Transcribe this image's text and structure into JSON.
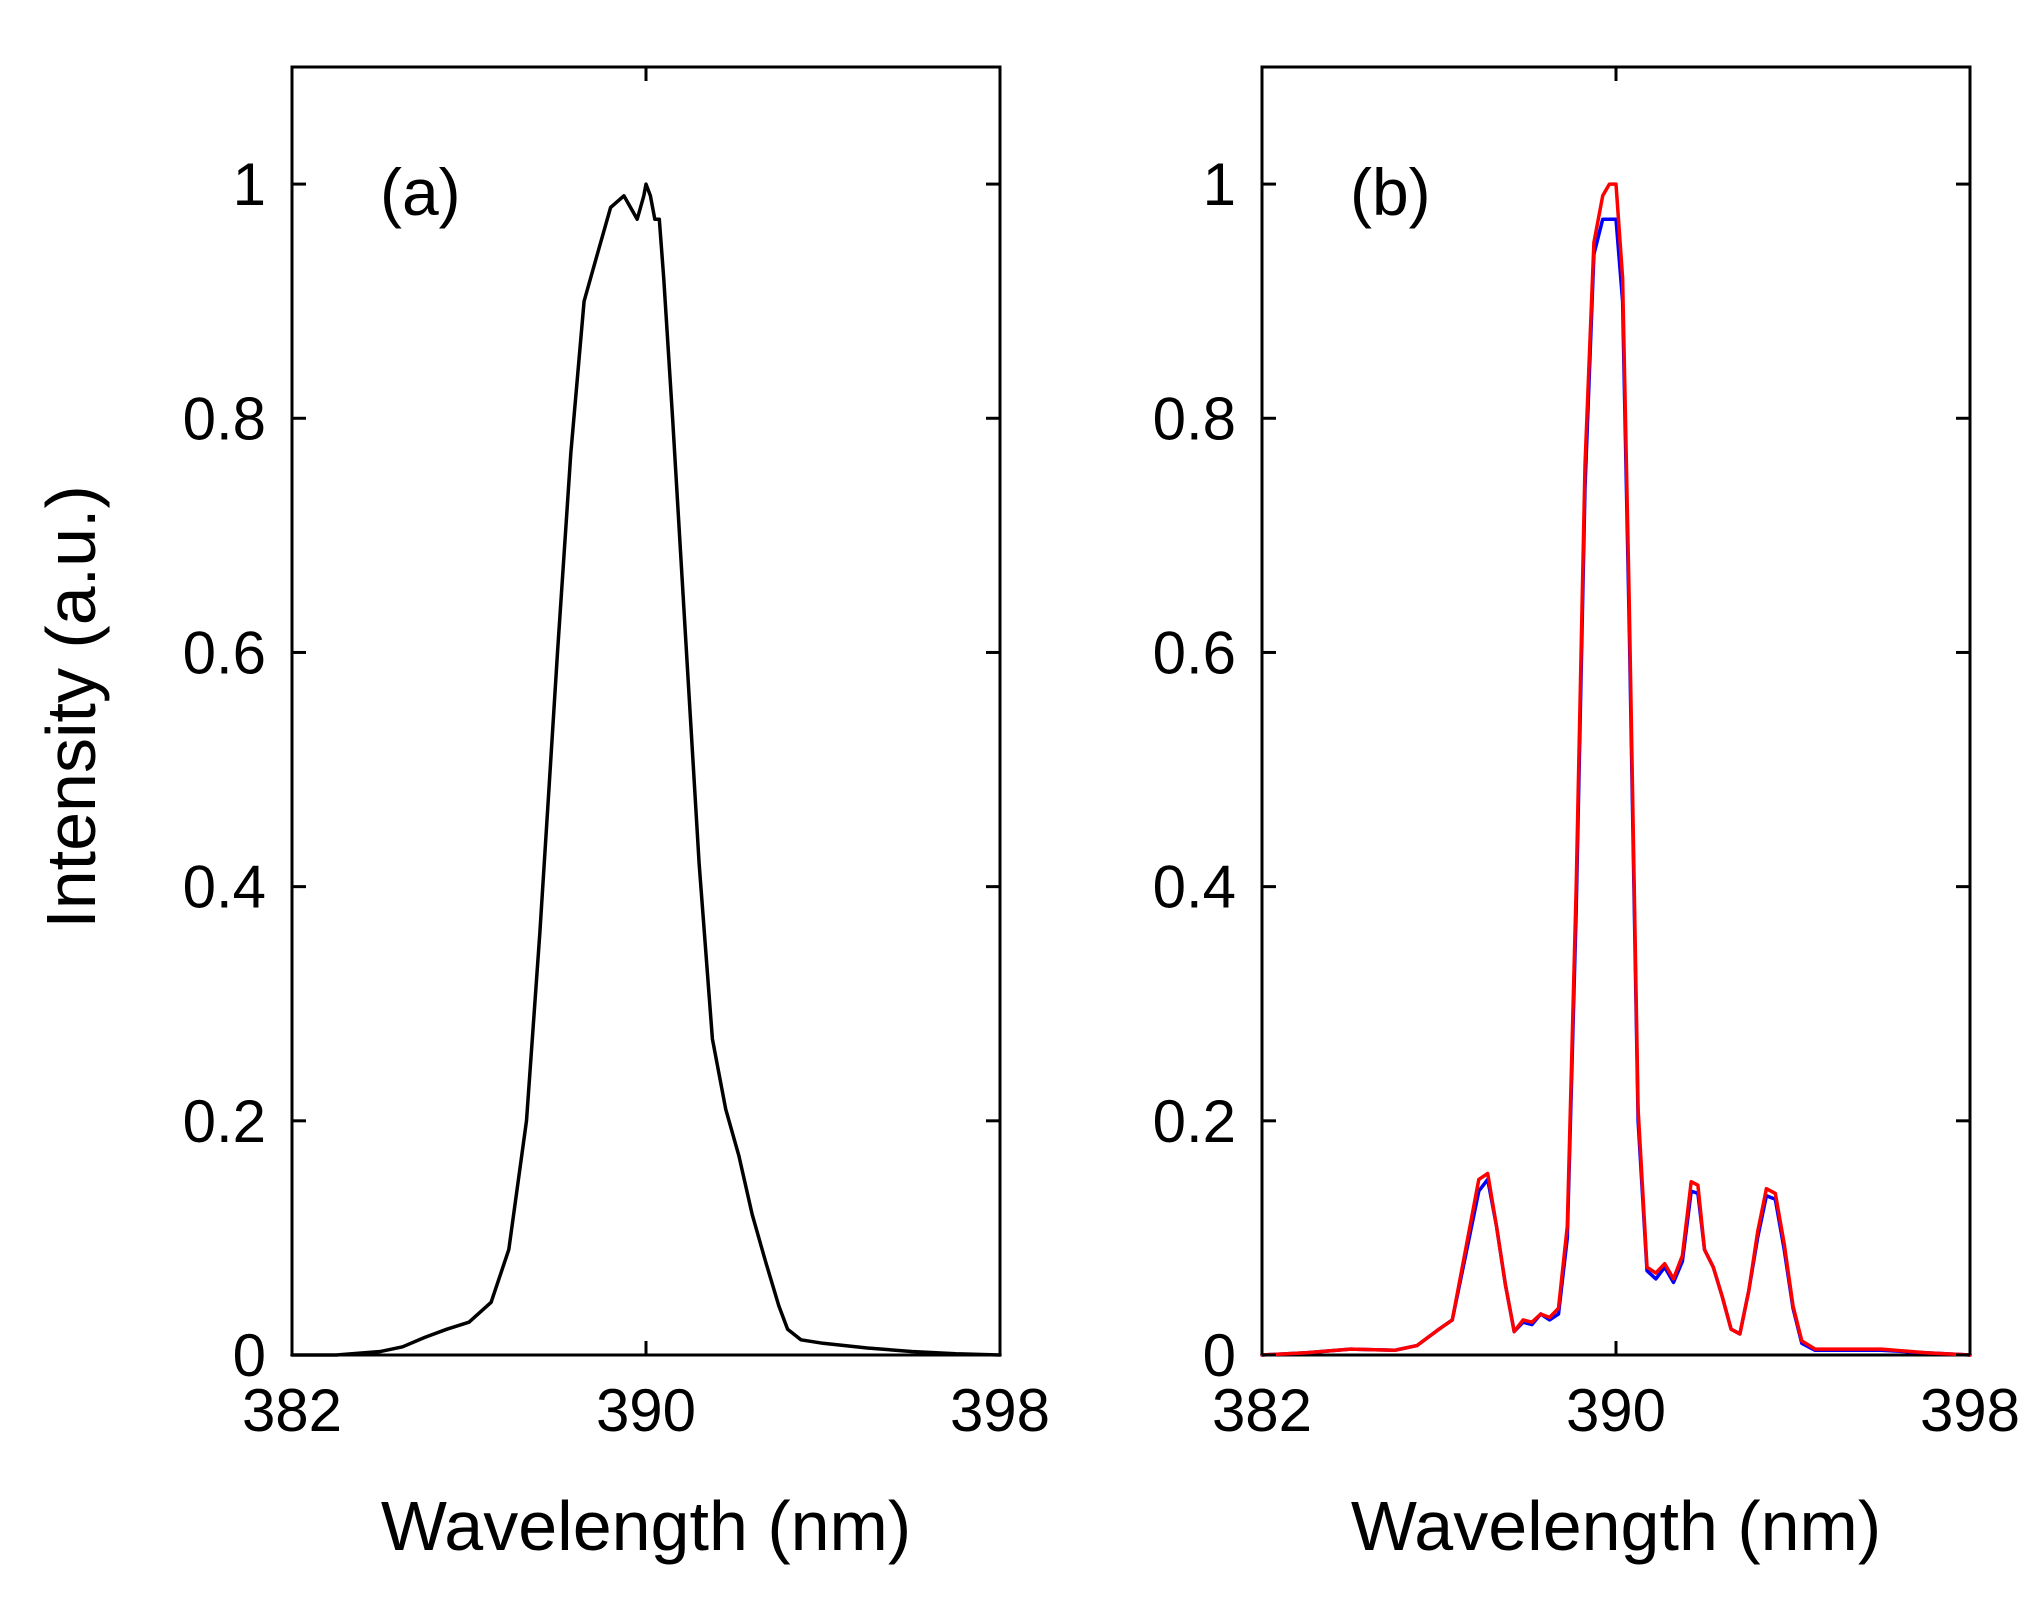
{
  "chart_data": [
    {
      "type": "line",
      "panel_label": "(a)",
      "xlabel": "Wavelength (nm)",
      "ylabel": "Intensity (a.u.)",
      "xlim": [
        382,
        398
      ],
      "ylim": [
        0,
        1.1
      ],
      "xticks": [
        "382",
        "390",
        "398"
      ],
      "yticks": [
        "0",
        "0.2",
        "0.4",
        "0.6",
        "0.8",
        "1"
      ],
      "ytick_values": [
        0,
        0.2,
        0.4,
        0.6,
        0.8,
        1
      ],
      "xtick_values": [
        382,
        390,
        398
      ],
      "grid": false,
      "series": [
        {
          "color": "#000000",
          "x": [
            382,
            383,
            384,
            384.5,
            385,
            385.5,
            386,
            386.5,
            386.9,
            387.3,
            387.6,
            387.8,
            388,
            388.3,
            388.6,
            388.9,
            389.2,
            389.5,
            389.8,
            389.95,
            390,
            390.1,
            390.2,
            390.3,
            390.4,
            390.6,
            390.9,
            391.2,
            391.5,
            391.8,
            392.1,
            392.4,
            392.7,
            393,
            393.2,
            393.5,
            394,
            395,
            396,
            397,
            398
          ],
          "y": [
            0,
            0,
            0.003,
            0.007,
            0.015,
            0.022,
            0.028,
            0.045,
            0.09,
            0.2,
            0.36,
            0.48,
            0.6,
            0.77,
            0.9,
            0.94,
            0.98,
            0.99,
            0.97,
            0.99,
            1.0,
            0.99,
            0.97,
            0.97,
            0.92,
            0.8,
            0.61,
            0.42,
            0.27,
            0.21,
            0.17,
            0.12,
            0.08,
            0.042,
            0.022,
            0.013,
            0.01,
            0.006,
            0.003,
            0.001,
            0
          ]
        }
      ]
    },
    {
      "type": "line",
      "panel_label": "(b)",
      "xlabel": "Wavelength (nm)",
      "ylabel": "",
      "xlim": [
        382,
        398
      ],
      "ylim": [
        0,
        1.1
      ],
      "xticks": [
        "382",
        "390",
        "398"
      ],
      "yticks": [
        "0",
        "0.2",
        "0.4",
        "0.6",
        "0.8",
        "1"
      ],
      "ytick_values": [
        0,
        0.2,
        0.4,
        0.6,
        0.8,
        1
      ],
      "xtick_values": [
        382,
        390,
        398
      ],
      "grid": false,
      "series": [
        {
          "color": "#0000ff",
          "x": [
            382,
            383,
            384,
            385,
            385.5,
            386,
            386.3,
            386.6,
            386.9,
            387.1,
            387.3,
            387.5,
            387.7,
            387.9,
            388.1,
            388.3,
            388.5,
            388.7,
            388.9,
            389.1,
            389.3,
            389.5,
            389.7,
            389.85,
            390,
            390.15,
            390.3,
            390.5,
            390.7,
            390.9,
            391.1,
            391.3,
            391.5,
            391.7,
            391.85,
            392,
            392.2,
            392.4,
            392.6,
            392.8,
            393,
            393.2,
            393.4,
            393.6,
            393.8,
            394,
            394.2,
            394.5,
            395,
            396,
            397,
            398
          ],
          "y": [
            0,
            0.002,
            0.005,
            0.004,
            0.008,
            0.022,
            0.03,
            0.085,
            0.14,
            0.15,
            0.11,
            0.06,
            0.02,
            0.028,
            0.026,
            0.035,
            0.03,
            0.035,
            0.1,
            0.38,
            0.74,
            0.94,
            0.97,
            0.97,
            0.97,
            0.9,
            0.62,
            0.2,
            0.072,
            0.065,
            0.075,
            0.062,
            0.08,
            0.14,
            0.138,
            0.09,
            0.075,
            0.05,
            0.022,
            0.018,
            0.055,
            0.1,
            0.136,
            0.133,
            0.09,
            0.04,
            0.01,
            0.004,
            0.004,
            0.004,
            0.002,
            0
          ]
        },
        {
          "color": "#ff0000",
          "x": [
            382,
            383,
            384,
            385,
            385.5,
            386,
            386.3,
            386.6,
            386.9,
            387.1,
            387.3,
            387.5,
            387.7,
            387.9,
            388.1,
            388.3,
            388.5,
            388.7,
            388.9,
            389.1,
            389.3,
            389.5,
            389.7,
            389.85,
            390,
            390.15,
            390.3,
            390.5,
            390.7,
            390.9,
            391.1,
            391.3,
            391.5,
            391.7,
            391.85,
            392,
            392.2,
            392.4,
            392.6,
            392.8,
            393,
            393.2,
            393.4,
            393.6,
            393.8,
            394,
            394.2,
            394.5,
            395,
            396,
            397,
            398
          ],
          "y": [
            0,
            0.002,
            0.005,
            0.004,
            0.008,
            0.022,
            0.03,
            0.09,
            0.15,
            0.155,
            0.11,
            0.06,
            0.02,
            0.03,
            0.028,
            0.035,
            0.032,
            0.04,
            0.11,
            0.4,
            0.76,
            0.95,
            0.99,
            1.0,
            1.0,
            0.92,
            0.64,
            0.21,
            0.075,
            0.07,
            0.078,
            0.065,
            0.085,
            0.148,
            0.145,
            0.09,
            0.075,
            0.05,
            0.022,
            0.018,
            0.055,
            0.105,
            0.142,
            0.138,
            0.095,
            0.042,
            0.012,
            0.005,
            0.005,
            0.005,
            0.002,
            0
          ]
        }
      ]
    }
  ]
}
